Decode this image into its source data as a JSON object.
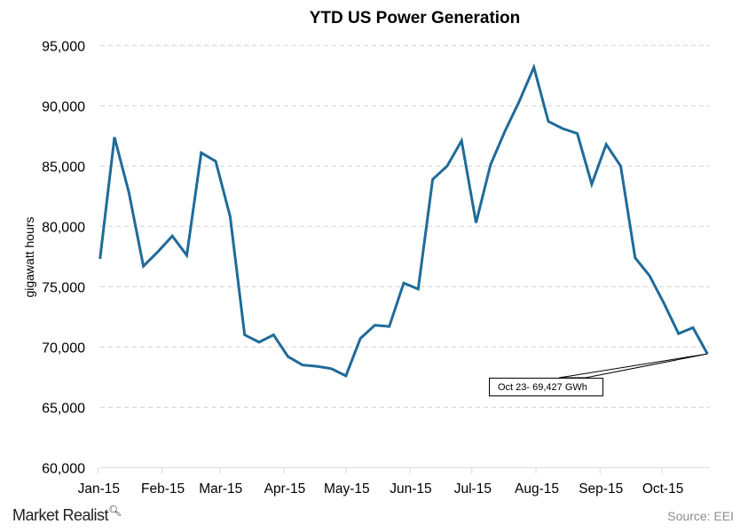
{
  "chart_data": {
    "type": "line",
    "title": "YTD US Power Generation",
    "xlabel": "",
    "ylabel": "gigawatt hours",
    "ylim": [
      60000,
      95000
    ],
    "yticks": [
      "60,000",
      "65,000",
      "70,000",
      "75,000",
      "80,000",
      "85,000",
      "90,000",
      "95,000"
    ],
    "ytick_values": [
      60000,
      65000,
      70000,
      75000,
      80000,
      85000,
      90000,
      95000
    ],
    "xticks": [
      "Jan-15",
      "Feb-15",
      "Mar-15",
      "Apr-15",
      "May-15",
      "Jun-15",
      "Jul-15",
      "Aug-15",
      "Sep-15",
      "Oct-15"
    ],
    "xtick_dates": [
      "2015-01-01",
      "2015-02-01",
      "2015-03-01",
      "2015-04-01",
      "2015-05-01",
      "2015-06-01",
      "2015-07-01",
      "2015-08-01",
      "2015-09-01",
      "2015-10-01"
    ],
    "xlim": [
      "2015-01-01",
      "2015-10-25"
    ],
    "grid": "horizontal dashed",
    "color": "#1f6b9a",
    "x": [
      "2015-01-02",
      "2015-01-09",
      "2015-01-16",
      "2015-01-23",
      "2015-01-30",
      "2015-02-06",
      "2015-02-13",
      "2015-02-20",
      "2015-02-27",
      "2015-03-06",
      "2015-03-13",
      "2015-03-20",
      "2015-03-27",
      "2015-04-03",
      "2015-04-10",
      "2015-04-17",
      "2015-04-24",
      "2015-05-01",
      "2015-05-08",
      "2015-05-15",
      "2015-05-22",
      "2015-05-29",
      "2015-06-05",
      "2015-06-12",
      "2015-06-19",
      "2015-06-26",
      "2015-07-03",
      "2015-07-10",
      "2015-07-17",
      "2015-07-24",
      "2015-07-31",
      "2015-08-07",
      "2015-08-14",
      "2015-08-21",
      "2015-08-28",
      "2015-09-04",
      "2015-09-11",
      "2015-09-18",
      "2015-09-25",
      "2015-10-02",
      "2015-10-09",
      "2015-10-16",
      "2015-10-23"
    ],
    "values": [
      77300,
      87400,
      82800,
      76700,
      77900,
      79200,
      77600,
      86100,
      85400,
      80800,
      71000,
      70400,
      71000,
      69200,
      68500,
      68400,
      68200,
      67600,
      70700,
      71800,
      71700,
      75300,
      74800,
      83900,
      85000,
      87100,
      80300,
      85100,
      87900,
      90400,
      93200,
      88700,
      88100,
      87700,
      83500,
      86800,
      85000,
      77400,
      75900,
      73600,
      71100,
      71600,
      69427
    ],
    "annotation": "Oct 23- 69,427 GWh"
  },
  "footer": {
    "brand": "Market Realist",
    "source": "Source: EEI"
  },
  "icons": {
    "brand": "magnifier-chart-icon"
  }
}
